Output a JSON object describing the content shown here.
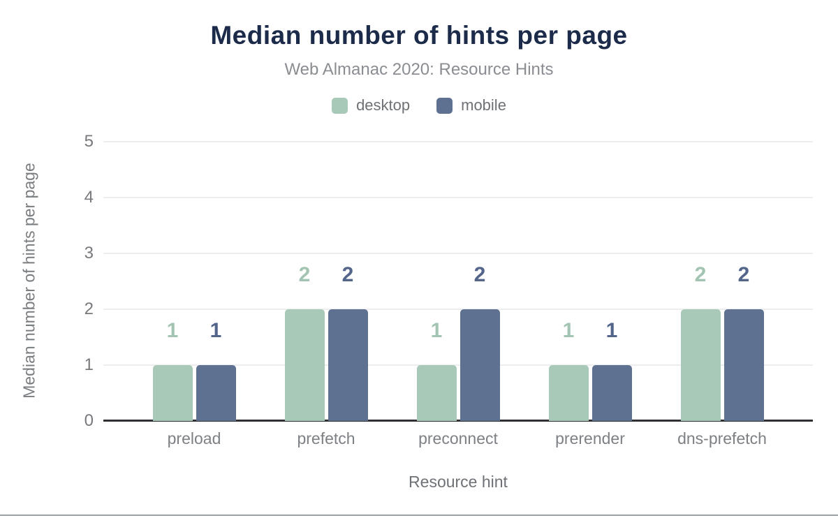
{
  "chart_data": {
    "type": "bar",
    "title": "Median number of hints per page",
    "subtitle": "Web Almanac 2020: Resource Hints",
    "categories": [
      "preload",
      "prefetch",
      "preconnect",
      "prerender",
      "dns-prefetch"
    ],
    "series": [
      {
        "name": "desktop",
        "color": "#a9c9b8",
        "label_color": "#a3c4b2",
        "values": [
          1,
          2,
          1,
          1,
          2
        ]
      },
      {
        "name": "mobile",
        "color": "#5e7190",
        "label_color": "#53658a",
        "values": [
          1,
          2,
          2,
          1,
          2
        ]
      }
    ],
    "xlabel": "Resource hint",
    "ylabel": "Median number of hints per page",
    "ylim": [
      0,
      5
    ],
    "yticks": [
      0,
      1,
      2,
      3,
      4,
      5
    ],
    "grid": true,
    "legend_position": "top",
    "data_labels": true
  },
  "colors": {
    "title": "#1c2b4a",
    "subtitle_text": "#8a8d91",
    "axis_text": "#77797d",
    "gridline": "#ededee",
    "axis_line": "#2e3033",
    "desktop": "#a9c9b8",
    "mobile": "#5e7190",
    "bottom_rule": "#9ba1a5"
  }
}
